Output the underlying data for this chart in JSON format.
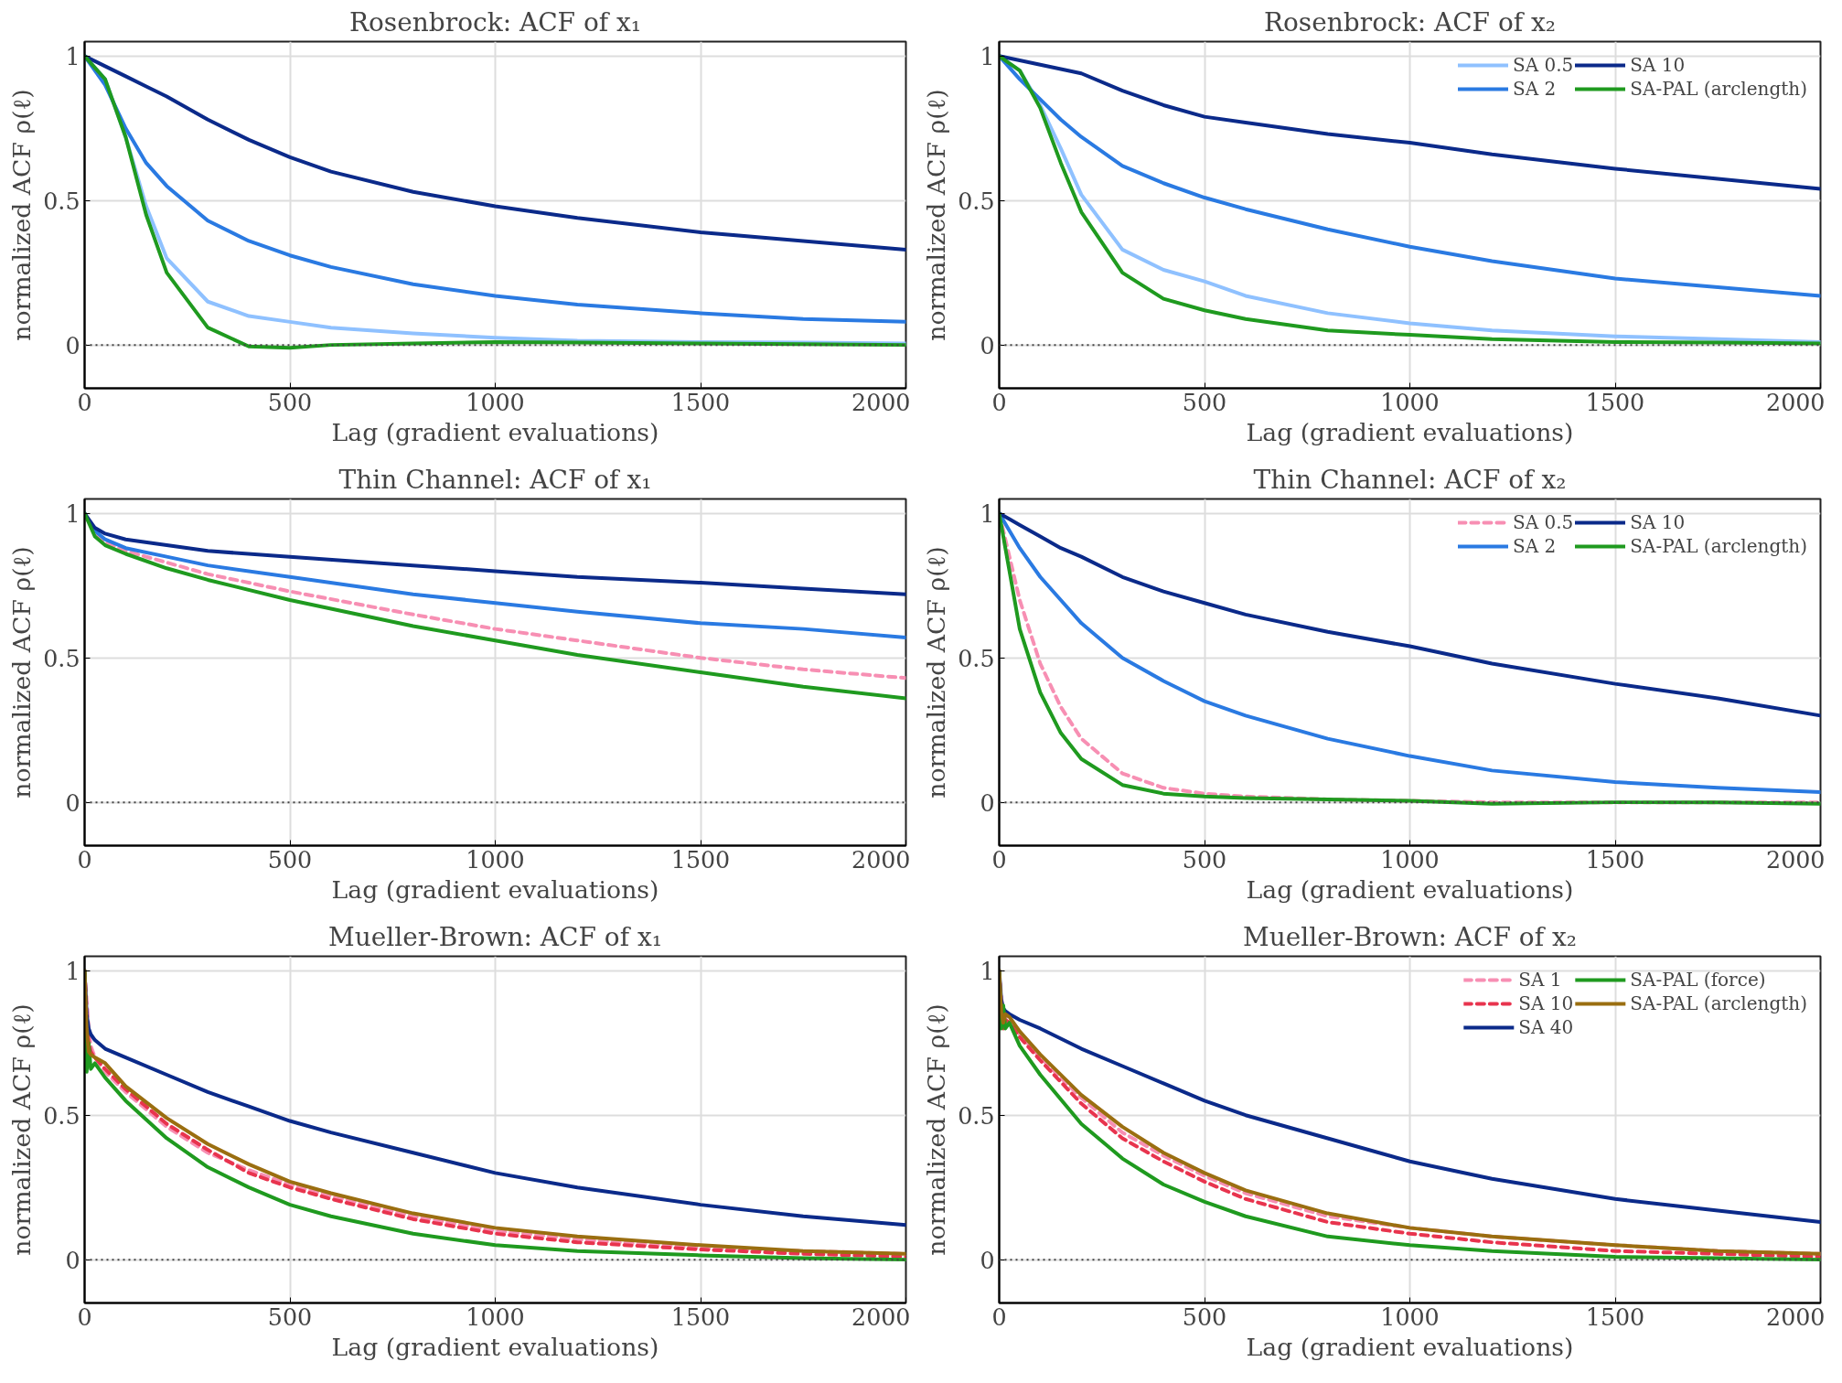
{
  "chart_data": [
    {
      "type": "line",
      "title": "Rosenbrock: ACF of x₁",
      "xlabel": "Lag (gradient evaluations)",
      "ylabel": "normalized ACF ρ(ℓ)",
      "xlim": [
        0,
        2000
      ],
      "ylim": [
        -0.15,
        1.05
      ],
      "xticks": [
        0,
        500,
        1000,
        1500,
        2000
      ],
      "yticks": [
        0,
        0.5,
        1
      ],
      "grid": true,
      "legend": false,
      "line_style": "solid",
      "x": [
        0,
        50,
        100,
        150,
        200,
        300,
        400,
        500,
        600,
        800,
        1000,
        1200,
        1500,
        1750,
        2000
      ],
      "series": [
        {
          "color": "#8fc1ff",
          "values": [
            1,
            0.92,
            0.72,
            0.48,
            0.3,
            0.15,
            0.1,
            0.08,
            0.06,
            0.04,
            0.025,
            0.015,
            0.01,
            0.008,
            0.005
          ]
        },
        {
          "color": "#2a7ae2",
          "values": [
            1,
            0.9,
            0.75,
            0.63,
            0.55,
            0.43,
            0.36,
            0.31,
            0.27,
            0.21,
            0.17,
            0.14,
            0.11,
            0.09,
            0.08
          ]
        },
        {
          "color": "#0b2a8a",
          "values": [
            1,
            0.965,
            0.93,
            0.895,
            0.86,
            0.78,
            0.71,
            0.65,
            0.6,
            0.53,
            0.48,
            0.44,
            0.39,
            0.36,
            0.33
          ]
        },
        {
          "color": "#1f9a1f",
          "values": [
            1,
            0.92,
            0.72,
            0.45,
            0.25,
            0.06,
            -0.005,
            -0.01,
            0,
            0.005,
            0.01,
            0.008,
            0.005,
            0.003,
            0
          ]
        }
      ],
      "ref_lines": [
        {
          "axis": "y",
          "value": 0,
          "color": "#444444",
          "line_style": "dotted"
        }
      ]
    },
    {
      "type": "line",
      "title": "Rosenbrock: ACF of x₂",
      "xlabel": "Lag (gradient evaluations)",
      "ylabel": "normalized ACF ρ(ℓ)",
      "xlim": [
        0,
        2000
      ],
      "ylim": [
        -0.15,
        1.05
      ],
      "xticks": [
        0,
        500,
        1000,
        1500,
        2000
      ],
      "yticks": [
        0,
        0.5,
        1
      ],
      "grid": true,
      "legend": "top right",
      "line_style": "solid",
      "x": [
        0,
        50,
        100,
        150,
        200,
        300,
        400,
        500,
        600,
        800,
        1000,
        1200,
        1500,
        1750,
        2000
      ],
      "series": [
        {
          "name": "SA 0.5",
          "color": "#8fc1ff",
          "values": [
            1,
            0.95,
            0.83,
            0.68,
            0.52,
            0.33,
            0.26,
            0.22,
            0.17,
            0.11,
            0.075,
            0.05,
            0.03,
            0.02,
            0.01
          ]
        },
        {
          "name": "SA 2",
          "color": "#2a7ae2",
          "values": [
            1,
            0.92,
            0.85,
            0.78,
            0.72,
            0.62,
            0.56,
            0.51,
            0.47,
            0.4,
            0.34,
            0.29,
            0.23,
            0.2,
            0.17
          ]
        },
        {
          "name": "SA 10",
          "color": "#0b2a8a",
          "values": [
            1,
            0.985,
            0.97,
            0.955,
            0.94,
            0.88,
            0.83,
            0.79,
            0.77,
            0.73,
            0.7,
            0.66,
            0.61,
            0.575,
            0.54
          ]
        },
        {
          "name": "SA-PAL (arclength)",
          "color": "#1f9a1f",
          "values": [
            1,
            0.95,
            0.82,
            0.63,
            0.46,
            0.25,
            0.16,
            0.12,
            0.09,
            0.05,
            0.035,
            0.02,
            0.01,
            0.008,
            0.005
          ]
        }
      ],
      "ref_lines": [
        {
          "axis": "y",
          "value": 0,
          "color": "#444444",
          "line_style": "dotted"
        }
      ]
    },
    {
      "type": "line",
      "title": "Thin Channel: ACF of x₁",
      "xlabel": "Lag (gradient evaluations)",
      "ylabel": "normalized ACF ρ(ℓ)",
      "xlim": [
        0,
        2000
      ],
      "ylim": [
        -0.15,
        1.05
      ],
      "xticks": [
        0,
        500,
        1000,
        1500,
        2000
      ],
      "yticks": [
        0,
        0.5,
        1
      ],
      "grid": true,
      "legend": false,
      "line_style": "solid",
      "x": [
        0,
        25,
        50,
        100,
        200,
        300,
        500,
        800,
        1000,
        1200,
        1500,
        1750,
        2000
      ],
      "series": [
        {
          "color": "#f78fb3",
          "line_style": "dashed",
          "values": [
            1,
            0.93,
            0.9,
            0.87,
            0.83,
            0.79,
            0.73,
            0.65,
            0.6,
            0.56,
            0.5,
            0.46,
            0.43
          ]
        },
        {
          "color": "#2a7ae2",
          "values": [
            1,
            0.94,
            0.91,
            0.88,
            0.85,
            0.82,
            0.78,
            0.72,
            0.69,
            0.66,
            0.62,
            0.6,
            0.57
          ]
        },
        {
          "color": "#0b2a8a",
          "values": [
            1,
            0.95,
            0.93,
            0.91,
            0.89,
            0.87,
            0.85,
            0.82,
            0.8,
            0.78,
            0.76,
            0.74,
            0.72
          ]
        },
        {
          "color": "#1f9a1f",
          "values": [
            1,
            0.92,
            0.89,
            0.86,
            0.81,
            0.77,
            0.7,
            0.61,
            0.56,
            0.51,
            0.45,
            0.4,
            0.36
          ]
        }
      ],
      "ref_lines": [
        {
          "axis": "y",
          "value": 0,
          "color": "#444444",
          "line_style": "dotted"
        }
      ]
    },
    {
      "type": "line",
      "title": "Thin Channel: ACF of x₂",
      "xlabel": "Lag (gradient evaluations)",
      "ylabel": "normalized ACF ρ(ℓ)",
      "xlim": [
        0,
        2000
      ],
      "ylim": [
        -0.15,
        1.05
      ],
      "xticks": [
        0,
        500,
        1000,
        1500,
        2000
      ],
      "yticks": [
        0,
        0.5,
        1
      ],
      "grid": true,
      "legend": "top right",
      "line_style": "solid",
      "x": [
        0,
        25,
        50,
        100,
        150,
        200,
        300,
        400,
        500,
        600,
        800,
        1000,
        1200,
        1500,
        1750,
        2000
      ],
      "series": [
        {
          "name": "SA 0.5",
          "color": "#f78fb3",
          "line_style": "dashed",
          "values": [
            1,
            0.85,
            0.7,
            0.48,
            0.33,
            0.22,
            0.1,
            0.05,
            0.03,
            0.02,
            0.01,
            0.005,
            0,
            0,
            0,
            0
          ]
        },
        {
          "name": "SA 2",
          "color": "#2a7ae2",
          "values": [
            1,
            0.94,
            0.88,
            0.78,
            0.7,
            0.62,
            0.5,
            0.42,
            0.35,
            0.3,
            0.22,
            0.16,
            0.11,
            0.07,
            0.05,
            0.035
          ]
        },
        {
          "name": "SA 10",
          "color": "#0b2a8a",
          "values": [
            1,
            0.98,
            0.96,
            0.92,
            0.88,
            0.85,
            0.78,
            0.73,
            0.69,
            0.65,
            0.59,
            0.54,
            0.48,
            0.41,
            0.36,
            0.3
          ]
        },
        {
          "name": "SA-PAL (arclength)",
          "color": "#1f9a1f",
          "values": [
            1,
            0.8,
            0.6,
            0.38,
            0.24,
            0.15,
            0.06,
            0.03,
            0.02,
            0.015,
            0.01,
            0.005,
            -0.005,
            0,
            0,
            -0.005
          ]
        }
      ],
      "ref_lines": [
        {
          "axis": "y",
          "value": 0,
          "color": "#444444",
          "line_style": "dotted"
        }
      ]
    },
    {
      "type": "line",
      "title": "Mueller-Brown: ACF of x₁",
      "xlabel": "Lag (gradient evaluations)",
      "ylabel": "normalized ACF ρ(ℓ)",
      "xlim": [
        0,
        2000
      ],
      "ylim": [
        -0.15,
        1.05
      ],
      "xticks": [
        0,
        500,
        1000,
        1500,
        2000
      ],
      "yticks": [
        0,
        0.5,
        1
      ],
      "grid": true,
      "legend": false,
      "line_style": "solid",
      "x": [
        0,
        5,
        10,
        15,
        25,
        50,
        100,
        200,
        300,
        400,
        500,
        600,
        800,
        1000,
        1200,
        1500,
        1750,
        2000
      ],
      "series": [
        {
          "color": "#f78fb3",
          "line_style": "dashed",
          "x": [
            0,
            10,
            15,
            25,
            50,
            100,
            200,
            300,
            400,
            500,
            600,
            800,
            1000,
            1200,
            1500,
            1750,
            2000
          ],
          "values": [
            1,
            0.8,
            0.74,
            0.7,
            0.65,
            0.58,
            0.46,
            0.37,
            0.31,
            0.26,
            0.22,
            0.15,
            0.1,
            0.07,
            0.04,
            0.03,
            0.02
          ]
        },
        {
          "color": "#e8344e",
          "line_style": "dashed",
          "values": [
            1,
            0.82,
            0.75,
            0.72,
            0.7,
            0.66,
            0.59,
            0.47,
            0.38,
            0.3,
            0.25,
            0.21,
            0.14,
            0.09,
            0.06,
            0.035,
            0.02,
            0.01
          ]
        },
        {
          "color": "#0b2a8a",
          "values": [
            1,
            0.85,
            0.8,
            0.78,
            0.76,
            0.73,
            0.7,
            0.64,
            0.58,
            0.53,
            0.48,
            0.44,
            0.37,
            0.3,
            0.25,
            0.19,
            0.15,
            0.12
          ]
        },
        {
          "color": "#1f9a1f",
          "values": [
            1,
            0.65,
            0.75,
            0.66,
            0.68,
            0.63,
            0.55,
            0.42,
            0.32,
            0.25,
            0.19,
            0.15,
            0.09,
            0.05,
            0.03,
            0.015,
            0.005,
            0
          ]
        },
        {
          "color": "#9a6e10",
          "values": [
            1,
            0.8,
            0.72,
            0.71,
            0.7,
            0.68,
            0.6,
            0.49,
            0.4,
            0.33,
            0.27,
            0.23,
            0.16,
            0.11,
            0.08,
            0.05,
            0.03,
            0.02
          ]
        }
      ],
      "ref_lines": [
        {
          "axis": "y",
          "value": 0,
          "color": "#444444",
          "line_style": "dotted"
        }
      ]
    },
    {
      "type": "line",
      "title": "Mueller-Brown: ACF of x₂",
      "xlabel": "Lag (gradient evaluations)",
      "ylabel": "normalized ACF ρ(ℓ)",
      "xlim": [
        0,
        2000
      ],
      "ylim": [
        -0.15,
        1.05
      ],
      "xticks": [
        0,
        500,
        1000,
        1500,
        2000
      ],
      "yticks": [
        0,
        0.5,
        1
      ],
      "grid": true,
      "legend": "top right",
      "line_style": "solid",
      "x": [
        0,
        5,
        10,
        15,
        25,
        50,
        100,
        200,
        300,
        400,
        500,
        600,
        800,
        1000,
        1200,
        1500,
        1750,
        2000
      ],
      "series": [
        {
          "name": "SA 1",
          "color": "#f78fb3",
          "line_style": "dashed",
          "x": [
            0,
            10,
            15,
            25,
            50,
            100,
            200,
            300,
            400,
            500,
            600,
            800,
            1000,
            1200,
            1500,
            1750,
            2000
          ],
          "values": [
            1,
            0.83,
            0.85,
            0.83,
            0.78,
            0.7,
            0.56,
            0.44,
            0.36,
            0.29,
            0.23,
            0.15,
            0.11,
            0.08,
            0.05,
            0.03,
            0.02
          ]
        },
        {
          "name": "SA 10",
          "color": "#e8344e",
          "line_style": "dashed",
          "values": [
            1,
            0.85,
            0.8,
            0.83,
            0.82,
            0.77,
            0.69,
            0.54,
            0.42,
            0.34,
            0.27,
            0.21,
            0.13,
            0.09,
            0.06,
            0.03,
            0.02,
            0.01
          ]
        },
        {
          "name": "SA 40",
          "color": "#0b2a8a",
          "values": [
            1,
            0.9,
            0.87,
            0.86,
            0.85,
            0.83,
            0.8,
            0.73,
            0.67,
            0.61,
            0.55,
            0.5,
            0.42,
            0.34,
            0.28,
            0.21,
            0.17,
            0.13
          ]
        },
        {
          "name": "SA-PAL (force)",
          "color": "#1f9a1f",
          "values": [
            1,
            0.8,
            0.88,
            0.8,
            0.82,
            0.74,
            0.64,
            0.47,
            0.35,
            0.26,
            0.2,
            0.15,
            0.08,
            0.05,
            0.03,
            0.01,
            0.005,
            0
          ]
        },
        {
          "name": "SA-PAL (arclength)",
          "color": "#9a6e10",
          "values": [
            1,
            0.86,
            0.82,
            0.85,
            0.84,
            0.79,
            0.71,
            0.57,
            0.46,
            0.37,
            0.3,
            0.24,
            0.16,
            0.11,
            0.08,
            0.05,
            0.03,
            0.02
          ]
        }
      ],
      "ref_lines": [
        {
          "axis": "y",
          "value": 0,
          "color": "#444444",
          "line_style": "dotted"
        }
      ]
    }
  ]
}
